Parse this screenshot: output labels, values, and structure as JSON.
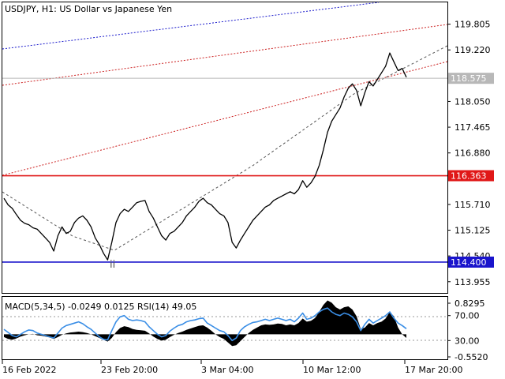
{
  "chart_header": "USDJPY, H1:  US Dollar vs Japanese Yen",
  "wave_label": "ii",
  "indicator_header": "MACD(5,34,5) -0.0249 0.0125 RSI(14) 49.05",
  "colors": {
    "price": "#000000",
    "support": "#1a14cc",
    "resistance": "#e01818",
    "macd_fill": "#000000",
    "rsi": "#3a8ee6",
    "channel_blue": "#1a1acc",
    "channel_red": "#cc2020",
    "trend_dashed": "#555555"
  },
  "chart_data": [
    {
      "type": "line",
      "symbol": "USDJPY",
      "timeframe": "H1",
      "x_ticks": [
        "16 Feb 2022",
        "23 Feb 20:00",
        "3 Mar 04:00",
        "10 Mar 12:00",
        "17 Mar 20:00"
      ],
      "y_ticks": [
        "119.805",
        "119.220",
        "118.050",
        "117.465",
        "116.880",
        "115.710",
        "115.125",
        "114.540",
        "113.955"
      ],
      "ylim": [
        113.7,
        120.3
      ],
      "current_price": {
        "label": "118.575",
        "value": 118.575
      },
      "levels": [
        {
          "label": "116.363",
          "value": 116.363,
          "color": "#e01818"
        },
        {
          "label": "114.400",
          "value": 114.4,
          "color": "#1a14cc"
        }
      ],
      "series": [
        {
          "values": [
            115.85,
            115.7,
            115.62,
            115.48,
            115.35,
            115.28,
            115.25,
            115.18,
            115.15,
            115.05,
            114.95,
            114.85,
            114.65,
            115.0,
            115.2,
            115.05,
            115.1,
            115.3,
            115.4,
            115.45,
            115.35,
            115.2,
            114.95,
            114.8,
            114.6,
            114.45,
            114.85,
            115.3,
            115.5,
            115.6,
            115.55,
            115.65,
            115.75,
            115.78,
            115.8,
            115.55,
            115.4,
            115.2,
            115.0,
            114.9,
            115.05,
            115.1,
            115.2,
            115.3,
            115.45,
            115.55,
            115.65,
            115.78,
            115.85,
            115.75,
            115.7,
            115.6,
            115.5,
            115.45,
            115.3,
            114.85,
            114.72,
            114.9,
            115.05,
            115.2,
            115.35,
            115.45,
            115.55,
            115.65,
            115.7,
            115.8,
            115.85,
            115.9,
            115.95,
            116.0,
            115.95,
            116.05,
            116.25,
            116.1,
            116.2,
            116.35,
            116.6,
            116.95,
            117.35,
            117.6,
            117.75,
            117.9,
            118.15,
            118.35,
            118.45,
            118.3,
            117.95,
            118.25,
            118.5,
            118.4,
            118.55,
            118.7,
            118.85,
            119.15,
            118.95,
            118.75,
            118.8,
            118.6
          ]
        }
      ],
      "macd_histogram": [
        -0.06,
        -0.1,
        -0.12,
        -0.09,
        -0.05,
        -0.02,
        0.0,
        0.01,
        -0.02,
        -0.03,
        -0.05,
        -0.07,
        -0.1,
        -0.06,
        -0.01,
        0.02,
        0.04,
        0.05,
        0.06,
        0.05,
        0.03,
        0.0,
        -0.04,
        -0.08,
        -0.12,
        -0.16,
        -0.08,
        0.05,
        0.14,
        0.18,
        0.16,
        0.12,
        0.1,
        0.09,
        0.08,
        0.02,
        -0.05,
        -0.1,
        -0.14,
        -0.12,
        -0.06,
        -0.01,
        0.03,
        0.06,
        0.1,
        0.13,
        0.16,
        0.19,
        0.2,
        0.15,
        0.08,
        0.0,
        -0.06,
        -0.1,
        -0.18,
        -0.26,
        -0.24,
        -0.15,
        -0.06,
        0.03,
        0.1,
        0.15,
        0.2,
        0.22,
        0.21,
        0.22,
        0.24,
        0.23,
        0.2,
        0.22,
        0.2,
        0.25,
        0.35,
        0.28,
        0.3,
        0.36,
        0.5,
        0.65,
        0.75,
        0.7,
        0.6,
        0.55,
        0.6,
        0.62,
        0.55,
        0.4,
        0.12,
        0.15,
        0.25,
        0.2,
        0.25,
        0.28,
        0.35,
        0.5,
        0.4,
        0.15,
        0.0,
        -0.08
      ],
      "rsi": [
        48,
        43,
        38,
        36,
        40,
        44,
        47,
        46,
        42,
        40,
        38,
        36,
        34,
        42,
        50,
        54,
        56,
        58,
        60,
        57,
        52,
        48,
        42,
        36,
        32,
        31,
        46,
        60,
        68,
        70,
        64,
        62,
        63,
        62,
        60,
        52,
        46,
        40,
        36,
        38,
        45,
        50,
        54,
        56,
        60,
        62,
        63,
        65,
        66,
        58,
        54,
        50,
        46,
        44,
        38,
        30,
        34,
        46,
        52,
        56,
        59,
        60,
        62,
        64,
        62,
        64,
        66,
        64,
        62,
        64,
        60,
        66,
        74,
        64,
        66,
        70,
        76,
        80,
        82,
        76,
        72,
        70,
        74,
        72,
        68,
        60,
        46,
        56,
        64,
        58,
        62,
        66,
        70,
        76,
        66,
        58,
        54,
        49
      ],
      "macd_range": [
        -0.552,
        0.8295
      ],
      "rsi_range": [
        0,
        100
      ],
      "indicator_ticks": [
        "0.8295",
        "70.00",
        "30.00",
        "-0.5520"
      ],
      "rsi_levels": [
        70,
        30
      ]
    }
  ]
}
